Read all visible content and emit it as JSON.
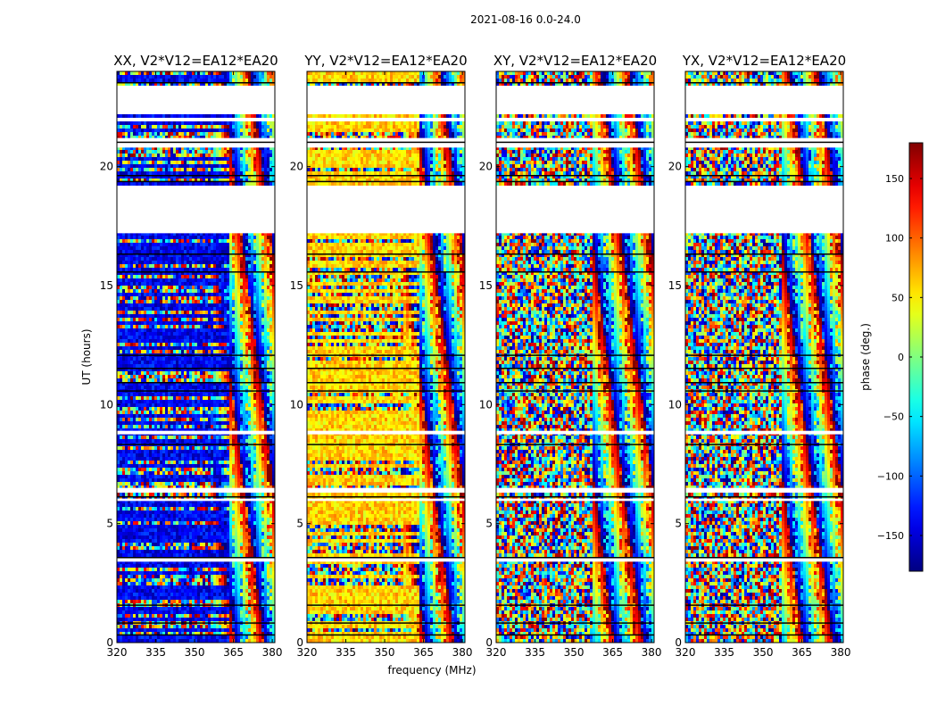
{
  "figure": {
    "suptitle": "2021-08-16 0.0-24.0",
    "xlabel": "frequency (MHz)",
    "ylabel": "UT (hours)"
  },
  "chart_data": {
    "type": "heatmap",
    "title": "2021-08-16 0.0-24.0",
    "xlabel": "frequency (MHz)",
    "ylabel": "UT (hours)",
    "xlim": [
      320,
      381
    ],
    "ylim": [
      0,
      24
    ],
    "xticks": [
      320,
      335,
      350,
      365,
      380
    ],
    "yticks": [
      0,
      5,
      10,
      15,
      20
    ],
    "panels": [
      {
        "title": "XX, V2*V12=EA12*EA20",
        "dominant_phase": -140,
        "dominant_until_mhz": 363
      },
      {
        "title": "YY, V2*V12=EA12*EA20",
        "dominant_phase": 60,
        "dominant_until_mhz": 363
      },
      {
        "title": "XY, V2*V12=EA12*EA20",
        "dominant_phase": null,
        "dominant_until_mhz": null
      },
      {
        "title": "YX, V2*V12=EA12*EA20",
        "dominant_phase": null,
        "dominant_until_mhz": null
      }
    ],
    "gaps_ut_hours": [
      [
        22.2,
        23.4
      ],
      [
        21.9,
        22.05
      ],
      [
        20.8,
        21.2
      ],
      [
        17.2,
        19.2
      ],
      [
        8.75,
        8.9
      ],
      [
        6.3,
        6.5
      ],
      [
        5.95,
        6.05
      ],
      [
        3.4,
        3.55
      ]
    ],
    "colorbar": {
      "label": "phase (deg.)",
      "range": [
        -180,
        180
      ],
      "ticks": [
        150,
        100,
        50,
        0,
        -50,
        -100,
        -150
      ],
      "colormap": "jet"
    }
  }
}
